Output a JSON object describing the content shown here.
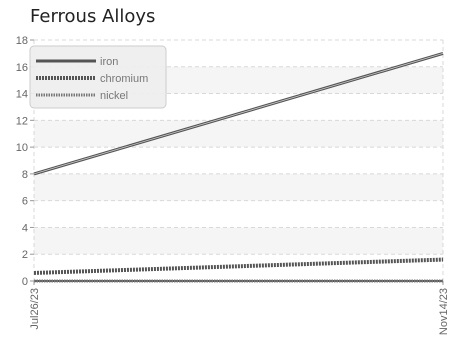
{
  "chart_data": {
    "type": "line",
    "title": "Ferrous Alloys",
    "xlabel": "",
    "ylabel": "",
    "x": [
      "Jul26/23",
      "Nov14/23"
    ],
    "xlim": [
      "Jul26/23",
      "Nov14/23"
    ],
    "ylim": [
      0,
      18
    ],
    "yticks": [
      0,
      2,
      4,
      6,
      8,
      10,
      12,
      14,
      16,
      18
    ],
    "grid": true,
    "legend_position": "top-left",
    "series": [
      {
        "name": "iron",
        "values": [
          8,
          17
        ],
        "color": "#555555",
        "style": "solid"
      },
      {
        "name": "chromium",
        "values": [
          0.6,
          1.6
        ],
        "color": "#555555",
        "style": "dashed"
      },
      {
        "name": "nickel",
        "values": [
          0,
          0
        ],
        "color": "#777777",
        "style": "double"
      }
    ]
  }
}
